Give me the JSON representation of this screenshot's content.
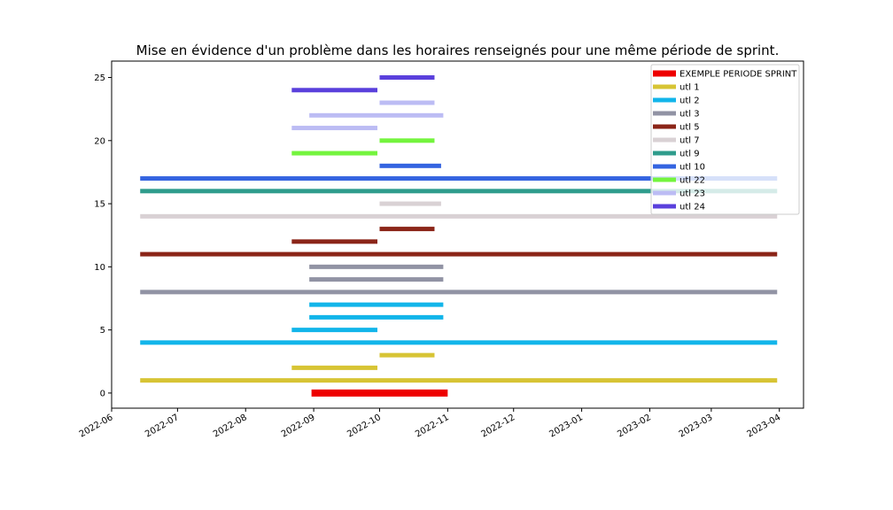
{
  "chart_data": {
    "type": "gantt",
    "title": "Mise en évidence d'un problème dans les horaires renseignés pour une même période de sprint.",
    "xlabel": "",
    "ylabel": "",
    "xlim": [
      "2022-06-01",
      "2023-04-12"
    ],
    "ylim": [
      -1.2,
      26.3
    ],
    "x_ticks": [
      "2022-06",
      "2022-07",
      "2022-08",
      "2022-09",
      "2022-10",
      "2022-11",
      "2022-12",
      "2023-01",
      "2023-02",
      "2023-03",
      "2023-04"
    ],
    "y_ticks": [
      0,
      5,
      10,
      15,
      20,
      25
    ],
    "grid": false,
    "legend_position": "top-right",
    "series": [
      {
        "name": "EXEMPLE PERIODE SPRINT",
        "color": "#ee0000",
        "segments": [
          {
            "y": 0,
            "start": "2022-08-31",
            "end": "2022-11-01"
          }
        ]
      },
      {
        "name": "utl 1",
        "color": "#d7c434",
        "segments": [
          {
            "y": 1,
            "start": "2022-06-14",
            "end": "2023-03-31"
          },
          {
            "y": 2,
            "start": "2022-08-22",
            "end": "2022-09-30"
          },
          {
            "y": 3,
            "start": "2022-10-01",
            "end": "2022-10-26"
          }
        ]
      },
      {
        "name": "utl 2",
        "color": "#12b5ea",
        "segments": [
          {
            "y": 4,
            "start": "2022-06-14",
            "end": "2023-03-31"
          },
          {
            "y": 5,
            "start": "2022-08-22",
            "end": "2022-09-30"
          },
          {
            "y": 6,
            "start": "2022-08-30",
            "end": "2022-10-30"
          },
          {
            "y": 7,
            "start": "2022-08-30",
            "end": "2022-10-30"
          }
        ]
      },
      {
        "name": "utl 3",
        "color": "#9193a4",
        "segments": [
          {
            "y": 8,
            "start": "2022-06-14",
            "end": "2023-03-31"
          },
          {
            "y": 9,
            "start": "2022-08-30",
            "end": "2022-10-30"
          },
          {
            "y": 10,
            "start": "2022-08-30",
            "end": "2022-10-30"
          }
        ]
      },
      {
        "name": "utl 5",
        "color": "#8b2518",
        "segments": [
          {
            "y": 11,
            "start": "2022-06-14",
            "end": "2023-03-31"
          },
          {
            "y": 12,
            "start": "2022-08-22",
            "end": "2022-09-30"
          },
          {
            "y": 13,
            "start": "2022-10-01",
            "end": "2022-10-26"
          }
        ]
      },
      {
        "name": "utl 7",
        "color": "#d9d1d4",
        "segments": [
          {
            "y": 14,
            "start": "2022-06-14",
            "end": "2023-03-31"
          },
          {
            "y": 15,
            "start": "2022-10-01",
            "end": "2022-10-29"
          }
        ]
      },
      {
        "name": "utl 9",
        "color": "#2f9c8c",
        "segments": [
          {
            "y": 16,
            "start": "2022-06-14",
            "end": "2023-03-31"
          }
        ]
      },
      {
        "name": "utl 10",
        "color": "#3464e0",
        "segments": [
          {
            "y": 17,
            "start": "2022-06-14",
            "end": "2023-03-31"
          },
          {
            "y": 18,
            "start": "2022-10-01",
            "end": "2022-10-29"
          }
        ]
      },
      {
        "name": "utl 22",
        "color": "#74f43e",
        "segments": [
          {
            "y": 19,
            "start": "2022-08-22",
            "end": "2022-09-30"
          },
          {
            "y": 20,
            "start": "2022-10-01",
            "end": "2022-10-26"
          }
        ]
      },
      {
        "name": "utl 23",
        "color": "#bcbcf4",
        "segments": [
          {
            "y": 21,
            "start": "2022-08-22",
            "end": "2022-09-30"
          },
          {
            "y": 22,
            "start": "2022-08-30",
            "end": "2022-10-30"
          },
          {
            "y": 23,
            "start": "2022-10-01",
            "end": "2022-10-26"
          }
        ]
      },
      {
        "name": "utl 24",
        "color": "#5a40dc",
        "segments": [
          {
            "y": 24,
            "start": "2022-08-22",
            "end": "2022-09-30"
          },
          {
            "y": 25,
            "start": "2022-10-01",
            "end": "2022-10-26"
          }
        ]
      }
    ]
  }
}
